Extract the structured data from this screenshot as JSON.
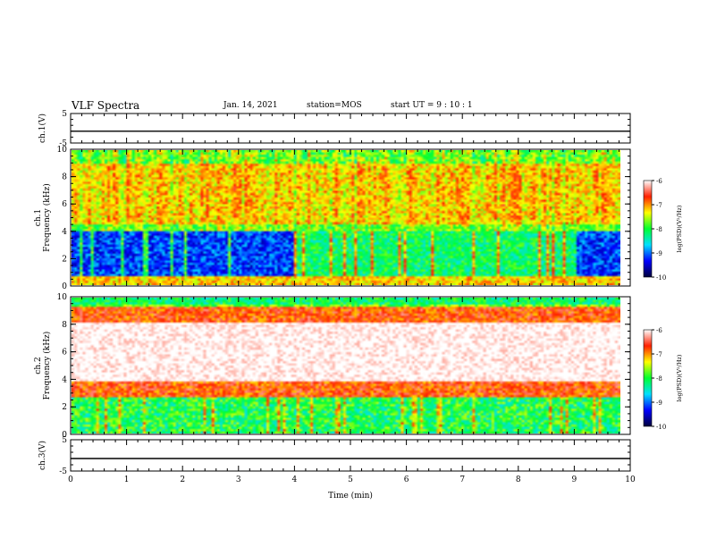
{
  "header": {
    "title": "VLF Spectra",
    "date": "Jan. 14, 2021",
    "station": "station=MOS",
    "start": "start UT =  9 : 10 : 1"
  },
  "colors": {
    "scale": [
      "#00003c",
      "#0000ff",
      "#00e0ff",
      "#00ff30",
      "#ffff00",
      "#ff2000",
      "#ffffff"
    ]
  },
  "chart_data": [
    {
      "type": "line",
      "title": "",
      "ylabel": "ch.1(V)",
      "ylim": [
        -5,
        5
      ],
      "yticks": [
        "5",
        "-5"
      ],
      "x": [
        0,
        10
      ],
      "values": [
        -1,
        -1
      ]
    },
    {
      "type": "heatmap",
      "ylabel": "ch.1\nFrequency (kHz)",
      "ylim": [
        0,
        10
      ],
      "yticks": [
        "0",
        "2",
        "4",
        "6",
        "8",
        "10"
      ],
      "colorbar": {
        "label": "log(PSD)(V²/Hz)",
        "range": [
          -10,
          -6
        ],
        "ticks": [
          "-6",
          "-7",
          "-8",
          "-9",
          "-10"
        ]
      },
      "dominant_band_khz": [
        5,
        9
      ],
      "dominant_level": -7,
      "quiet_level_below_4khz": -9.5
    },
    {
      "type": "heatmap",
      "ylabel": "ch.2\nFrequency (kHz)",
      "ylim": [
        0,
        10
      ],
      "yticks": [
        "0",
        "2",
        "4",
        "6",
        "8",
        "10"
      ],
      "colorbar": {
        "label": "log(PSD)(V²/Hz)",
        "range": [
          -10,
          -6
        ],
        "ticks": [
          "-6",
          "-7",
          "-8",
          "-9",
          "-10"
        ]
      },
      "dominant_band_khz": [
        4,
        8
      ],
      "dominant_level": -6,
      "quiet_level_below_3khz": -8.5
    },
    {
      "type": "line",
      "ylabel": "ch.3(V)",
      "ylim": [
        -5,
        5
      ],
      "yticks": [
        "5",
        "-5"
      ],
      "x": [
        0,
        10
      ],
      "values": [
        -1,
        -1
      ]
    }
  ],
  "xaxis": {
    "label": "Time (min)",
    "range": [
      0,
      10
    ],
    "ticks": [
      "0",
      "1",
      "2",
      "3",
      "4",
      "5",
      "6",
      "7",
      "8",
      "9",
      "10"
    ]
  }
}
